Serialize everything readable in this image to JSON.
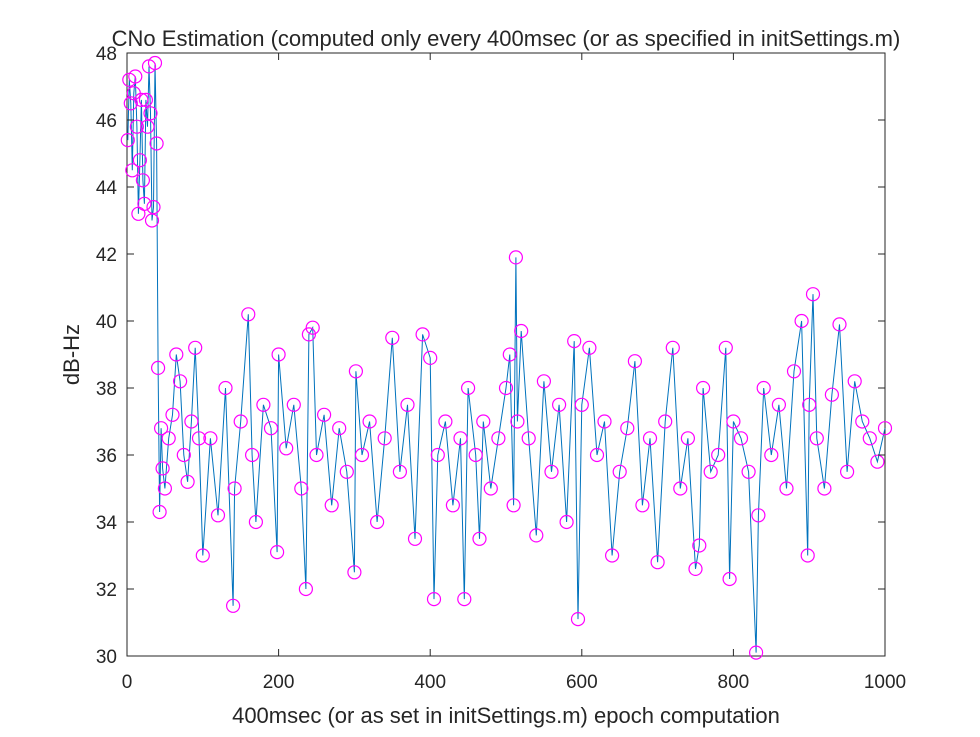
{
  "chart_data": {
    "type": "line",
    "title": "CNo Estimation (computed only every 400msec (or as specified in initSettings.m)",
    "xlabel": "400msec (or as set in initSettings.m) epoch computation",
    "ylabel": "dB-Hz",
    "xlim": [
      0,
      1000
    ],
    "ylim": [
      30,
      48
    ],
    "xticks": [
      "0",
      "200",
      "400",
      "600",
      "800",
      "1000"
    ],
    "yticks": [
      "30",
      "32",
      "34",
      "36",
      "38",
      "40",
      "42",
      "44",
      "46",
      "48"
    ],
    "grid": false,
    "colors": {
      "line": "#0072BD",
      "marker": "#FF00FF"
    },
    "series": [
      {
        "marker": "circle",
        "x": [
          1,
          3,
          5,
          7,
          9,
          11,
          13,
          15,
          17,
          19,
          21,
          23,
          25,
          27,
          29,
          31,
          33,
          35,
          37,
          39,
          41,
          43,
          45,
          47,
          50,
          55,
          60,
          65,
          70,
          75,
          80,
          85,
          90,
          95,
          100,
          110,
          120,
          130,
          140,
          142,
          150,
          160,
          165,
          170,
          180,
          190,
          198,
          200,
          210,
          220,
          230,
          236,
          240,
          245,
          250,
          260,
          270,
          280,
          290,
          300,
          302,
          310,
          320,
          330,
          340,
          350,
          360,
          370,
          380,
          390,
          400,
          405,
          410,
          420,
          430,
          440,
          445,
          450,
          460,
          465,
          470,
          480,
          490,
          500,
          505,
          510,
          513,
          515,
          520,
          530,
          540,
          550,
          560,
          570,
          580,
          590,
          595,
          600,
          610,
          620,
          630,
          640,
          650,
          660,
          670,
          680,
          690,
          700,
          710,
          720,
          730,
          740,
          750,
          755,
          760,
          770,
          780,
          790,
          795,
          800,
          810,
          820,
          830,
          833,
          840,
          850,
          860,
          870,
          880,
          890,
          898,
          900,
          905,
          910,
          920,
          930,
          940,
          950,
          960,
          970,
          980,
          990,
          1000
        ],
        "y": [
          45.4,
          47.2,
          46.5,
          44.5,
          46.8,
          47.3,
          45.8,
          43.2,
          44.8,
          46.6,
          44.2,
          43.5,
          46.6,
          45.8,
          47.6,
          46.2,
          43.0,
          43.4,
          47.7,
          45.3,
          38.6,
          34.3,
          36.8,
          35.6,
          35.0,
          36.5,
          37.2,
          39.0,
          38.2,
          36.0,
          35.2,
          37.0,
          39.2,
          36.5,
          33.0,
          36.5,
          34.2,
          38.0,
          31.5,
          35.0,
          37.0,
          40.2,
          36.0,
          34.0,
          37.5,
          36.8,
          33.1,
          39.0,
          36.2,
          37.5,
          35.0,
          32.0,
          39.6,
          39.8,
          36.0,
          37.2,
          34.5,
          36.8,
          35.5,
          32.5,
          38.5,
          36.0,
          37.0,
          34.0,
          36.5,
          39.5,
          35.5,
          37.5,
          33.5,
          39.6,
          38.9,
          31.7,
          36.0,
          37.0,
          34.5,
          36.5,
          31.7,
          38.0,
          36.0,
          33.5,
          37.0,
          35.0,
          36.5,
          38.0,
          39.0,
          34.5,
          41.9,
          37.0,
          39.7,
          36.5,
          33.6,
          38.2,
          35.5,
          37.5,
          34.0,
          39.4,
          31.1,
          37.5,
          39.2,
          36.0,
          37.0,
          33.0,
          35.5,
          36.8,
          38.8,
          34.5,
          36.5,
          32.8,
          37.0,
          39.2,
          35.0,
          36.5,
          32.6,
          33.3,
          38.0,
          35.5,
          36.0,
          39.2,
          32.3,
          37.0,
          36.5,
          35.5,
          30.1,
          34.2,
          38.0,
          36.0,
          37.5,
          35.0,
          38.5,
          40.0,
          33.0,
          37.5,
          40.8,
          36.5,
          35.0,
          37.8,
          39.9,
          35.5,
          38.2,
          37.0,
          36.5,
          35.8,
          36.8
        ]
      }
    ]
  }
}
